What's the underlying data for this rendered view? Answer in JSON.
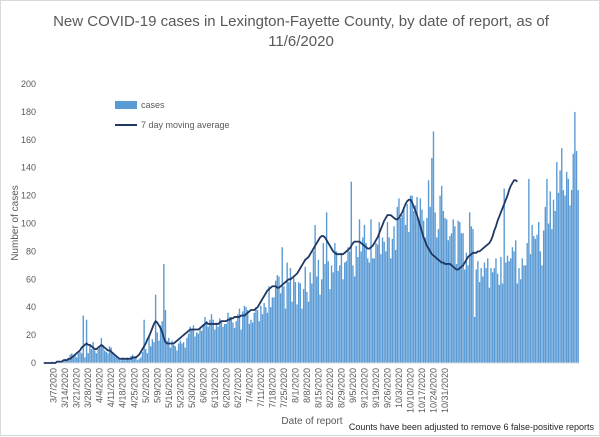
{
  "chart_data": {
    "type": "bar",
    "title_line1": "New COVID-19 cases in Lexington-Fayette County, by date of report, as of",
    "title_line2": "11/6/2020",
    "xlabel": "Date of report",
    "ylabel": "Number of cases",
    "ylim": [
      0,
      200
    ],
    "yticks": [
      0,
      20,
      40,
      60,
      80,
      100,
      120,
      140,
      160,
      180,
      200
    ],
    "grid": false,
    "legend_position": "top-left",
    "start_date": "3/1/2020",
    "x_tick_labels": [
      "3/7/2020",
      "3/14/2020",
      "3/21/2020",
      "3/28/2020",
      "4/4/2020",
      "4/11/2020",
      "4/18/2020",
      "4/25/2020",
      "5/2/2020",
      "5/9/2020",
      "5/16/2020",
      "5/23/2020",
      "5/30/2020",
      "6/6/2020",
      "6/13/2020",
      "6/20/2020",
      "6/27/2020",
      "7/4/2020",
      "7/11/2020",
      "7/18/2020",
      "7/25/2020",
      "8/1/2020",
      "8/8/2020",
      "8/15/2020",
      "8/22/2020",
      "8/29/2020",
      "9/5/2020",
      "9/12/2020",
      "9/19/2020",
      "9/26/2020",
      "10/3/2020",
      "10/10/2020",
      "10/17/2020",
      "10/24/2020",
      "10/31/2020"
    ],
    "series": [
      {
        "name": "cases",
        "style": "bar",
        "color": "#5b9bd5",
        "values": [
          0,
          0,
          0,
          0,
          0,
          1,
          0,
          0,
          1,
          1,
          1,
          1,
          1,
          3,
          2,
          3,
          6,
          7,
          5,
          6,
          4,
          7,
          8,
          7,
          34,
          4,
          31,
          7,
          13,
          10,
          15,
          9,
          7,
          10,
          11,
          18,
          13,
          9,
          8,
          7,
          12,
          11,
          7,
          5,
          4,
          3,
          2,
          2,
          4,
          2,
          3,
          4,
          2,
          5,
          6,
          4,
          5,
          2,
          3,
          4,
          8,
          31,
          10,
          7,
          20,
          12,
          17,
          15,
          49,
          22,
          16,
          27,
          30,
          71,
          38,
          16,
          18,
          11,
          16,
          13,
          12,
          9,
          14,
          16,
          14,
          15,
          11,
          18,
          21,
          26,
          24,
          27,
          19,
          22,
          21,
          25,
          23,
          28,
          33,
          30,
          26,
          31,
          35,
          31,
          24,
          29,
          26,
          32,
          30,
          26,
          28,
          28,
          36,
          33,
          33,
          29,
          25,
          30,
          35,
          39,
          24,
          37,
          41,
          40,
          38,
          28,
          31,
          29,
          36,
          40,
          38,
          30,
          41,
          35,
          43,
          40,
          36,
          55,
          40,
          47,
          47,
          59,
          63,
          62,
          50,
          83,
          55,
          39,
          72,
          58,
          68,
          44,
          61,
          58,
          42,
          58,
          57,
          39,
          53,
          69,
          51,
          44,
          65,
          57,
          80,
          99,
          62,
          74,
          49,
          60,
          86,
          71,
          108,
          73,
          53,
          70,
          65,
          86,
          80,
          66,
          70,
          79,
          60,
          72,
          73,
          83,
          80,
          130,
          70,
          62,
          84,
          76,
          103,
          80,
          90,
          99,
          86,
          75,
          72,
          103,
          75,
          75,
          86,
          85,
          101,
          78,
          90,
          87,
          80,
          101,
          90,
          75,
          89,
          98,
          81,
          112,
          118,
          104,
          106,
          112,
          99,
          114,
          94,
          120,
          120,
          109,
          113,
          119,
          103,
          118,
          110,
          102,
          90,
          104,
          131,
          112,
          147,
          166,
          108,
          90,
          96,
          120,
          127,
          109,
          104,
          103,
          88,
          91,
          93,
          103,
          98,
          71,
          102,
          101,
          93,
          93,
          67,
          79,
          70,
          108,
          98,
          96,
          33,
          67,
          73,
          58,
          68,
          62,
          72,
          68,
          75,
          54,
          68,
          65,
          68,
          75,
          64,
          56,
          76,
          57,
          125,
          72,
          77,
          73,
          75,
          83,
          80,
          88,
          57,
          68,
          60,
          75,
          70,
          70,
          86,
          132,
          78,
          99,
          91,
          89,
          92,
          101,
          80,
          70,
          95,
          112,
          132,
          100,
          123,
          96,
          117,
          109,
          144,
          122,
          138,
          154,
          124,
          120,
          137,
          132,
          113,
          124,
          150,
          180,
          152,
          124
        ]
      },
      {
        "name": "7 day moving average",
        "style": "line",
        "color": "#1f3864",
        "values": [
          0,
          0,
          0,
          0,
          0,
          0,
          0,
          0,
          1,
          1,
          1,
          1,
          2,
          2,
          2,
          3,
          3,
          4,
          5,
          6,
          7,
          8,
          9,
          11,
          12,
          13,
          14,
          13,
          13,
          12,
          11,
          10,
          10,
          11,
          12,
          13,
          12,
          11,
          10,
          9,
          9,
          8,
          7,
          6,
          5,
          4,
          3,
          3,
          3,
          3,
          3,
          3,
          3,
          3,
          4,
          4,
          4,
          5,
          6,
          8,
          10,
          12,
          14,
          17,
          19,
          22,
          25,
          28,
          30,
          29,
          27,
          25,
          22,
          18,
          15,
          14,
          14,
          14,
          14,
          14,
          15,
          16,
          17,
          18,
          19,
          20,
          21,
          22,
          23,
          24,
          24,
          24,
          24,
          24,
          24,
          25,
          26,
          27,
          28,
          29,
          28,
          28,
          28,
          28,
          28,
          28,
          28,
          29,
          30,
          30,
          30,
          30,
          31,
          31,
          32,
          32,
          33,
          33,
          33,
          33,
          34,
          34,
          34,
          35,
          36,
          37,
          38,
          38,
          38,
          39,
          40,
          42,
          44,
          46,
          48,
          50,
          52,
          53,
          54,
          55,
          55,
          55,
          54,
          54,
          55,
          56,
          57,
          58,
          59,
          60,
          60,
          61,
          62,
          63,
          64,
          66,
          68,
          70,
          72,
          74,
          75,
          76,
          78,
          80,
          82,
          84,
          86,
          88,
          90,
          91,
          91,
          90,
          88,
          86,
          84,
          82,
          80,
          79,
          78,
          78,
          78,
          78,
          78,
          79,
          80,
          81,
          82,
          84,
          86,
          87,
          87,
          87,
          87,
          86,
          85,
          84,
          83,
          82,
          82,
          83,
          84,
          86,
          88,
          90,
          93,
          96,
          99,
          102,
          104,
          106,
          106,
          106,
          105,
          104,
          103,
          103,
          104,
          106,
          108,
          111,
          114,
          116,
          117,
          117,
          115,
          112,
          109,
          106,
          102,
          98,
          94,
          90,
          87,
          84,
          82,
          80,
          78,
          77,
          76,
          75,
          74,
          73,
          72,
          72,
          71,
          71,
          71,
          71,
          70,
          69,
          68,
          67,
          67,
          68,
          69,
          70,
          72,
          74,
          76,
          77,
          78,
          79,
          79,
          79,
          80,
          80,
          81,
          82,
          83,
          84,
          85,
          86,
          88,
          91,
          95,
          98,
          102,
          105,
          108,
          111,
          114,
          117,
          120,
          124,
          127,
          129,
          131,
          131,
          130
        ]
      }
    ],
    "legend": [
      "cases",
      "7 day moving average"
    ],
    "annotations": [
      "Counts have been adjusted to remove 6 false-positive reports"
    ]
  }
}
